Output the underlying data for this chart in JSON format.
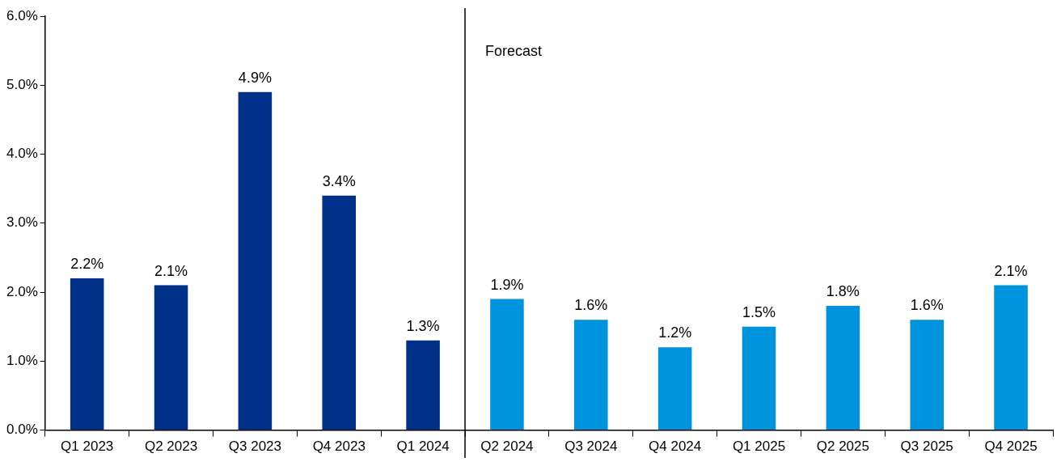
{
  "chart_data": {
    "type": "bar",
    "categories": [
      "Q1 2023",
      "Q2 2023",
      "Q3 2023",
      "Q4 2023",
      "Q1 2024",
      "Q2 2024",
      "Q3 2024",
      "Q4 2024",
      "Q1 2025",
      "Q2 2025",
      "Q3 2025",
      "Q4 2025"
    ],
    "values": [
      2.2,
      2.1,
      4.9,
      3.4,
      1.3,
      1.9,
      1.6,
      1.2,
      1.5,
      1.8,
      1.6,
      2.1
    ],
    "colors": [
      "#003087",
      "#003087",
      "#003087",
      "#003087",
      "#003087",
      "#0093dd",
      "#0093dd",
      "#0093dd",
      "#0093dd",
      "#0093dd",
      "#0093dd",
      "#0093dd"
    ],
    "value_labels": [
      "2.2%",
      "2.1%",
      "4.9%",
      "3.4%",
      "1.3%",
      "1.9%",
      "1.6%",
      "1.2%",
      "1.5%",
      "1.8%",
      "1.6%",
      "2.1%"
    ],
    "ylim": [
      0,
      6
    ],
    "yticks": [
      {
        "value": 0,
        "label": "0.0%"
      },
      {
        "value": 1,
        "label": "1.0%"
      },
      {
        "value": 2,
        "label": "2.0%"
      },
      {
        "value": 3,
        "label": "3.0%"
      },
      {
        "value": 4,
        "label": "4.0%"
      },
      {
        "value": 5,
        "label": "5.0%"
      },
      {
        "value": 6,
        "label": "6.0%"
      }
    ],
    "annotations": [
      "Forecast"
    ],
    "grid": false,
    "legend": false
  }
}
